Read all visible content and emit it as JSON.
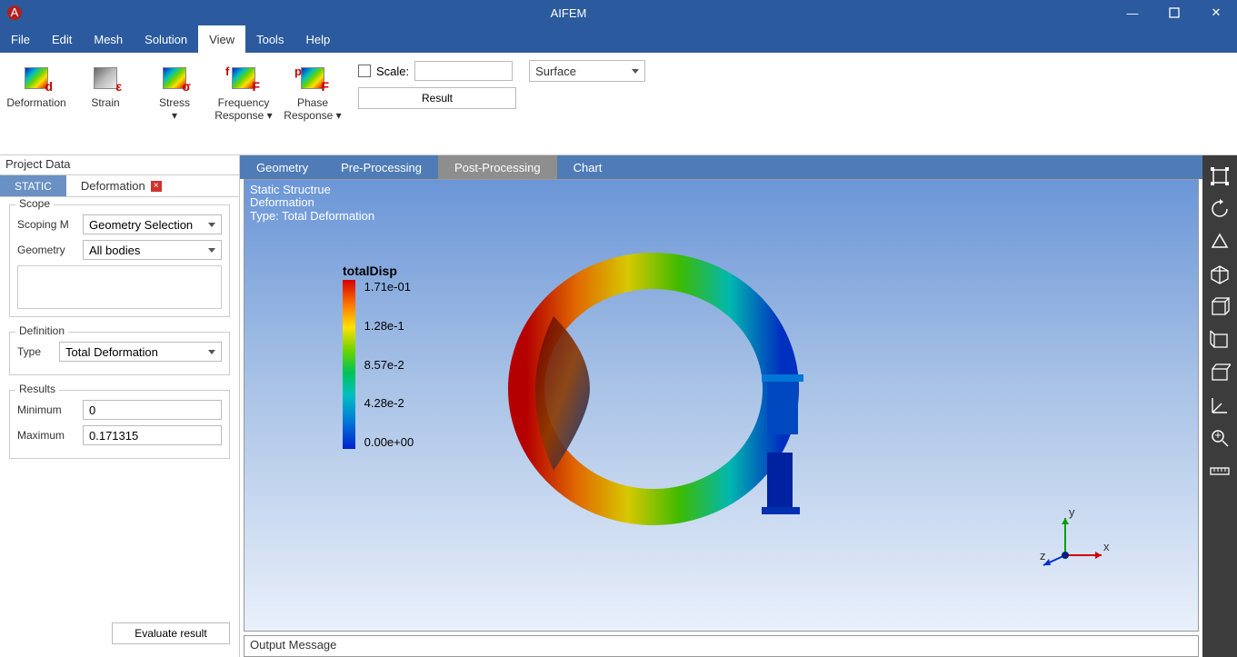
{
  "app_title": "AIFEM",
  "window_buttons": {
    "min": "—",
    "max": "▢",
    "close": "✕"
  },
  "menubar": {
    "items": [
      "File",
      "Edit",
      "Mesh",
      "Solution",
      "View",
      "Tools",
      "Help"
    ],
    "active_index": 4
  },
  "ribbon": {
    "buttons": [
      {
        "label": "Deformation",
        "sub": "d",
        "gray": false
      },
      {
        "label": "Strain",
        "sub": "ε",
        "gray": true
      },
      {
        "label": "Stress\n▾",
        "sub": "σ",
        "gray": false
      },
      {
        "label": "Frequency\nResponse ▾",
        "sub": "F",
        "pre": "f",
        "gray": false
      },
      {
        "label": "Phase\nResponse ▾",
        "sub": "F",
        "pre": "p",
        "gray": false
      }
    ],
    "scale_label": "Scale:",
    "scale_value": "",
    "result_label": "Result",
    "surface_label": "Surface"
  },
  "project_panel": {
    "title": "Project Data",
    "tabs": [
      {
        "label": "STATIC",
        "active": true
      },
      {
        "label": "Deformation",
        "closable": true
      }
    ],
    "scope": {
      "legend": "Scope",
      "scoping_method_label": "Scoping M",
      "scoping_method_value": "Geometry Selection",
      "geometry_label": "Geometry",
      "geometry_value": "All bodies"
    },
    "definition": {
      "legend": "Definition",
      "type_label": "Type",
      "type_value": "Total Deformation"
    },
    "results": {
      "legend": "Results",
      "min_label": "Minimum",
      "min_value": "0",
      "max_label": "Maximum",
      "max_value": "0.171315"
    },
    "evaluate_label": "Evaluate result"
  },
  "view_tabs": {
    "items": [
      "Geometry",
      "Pre-Processing",
      "Post-Processing",
      "Chart"
    ],
    "active_index": 2
  },
  "viewport": {
    "lines": [
      "Static Structrue",
      "Deformation",
      "Type: Total Deformation"
    ],
    "legend_title": "totalDisp",
    "legend_ticks": [
      "1.71e-01",
      "1.28e-1",
      "8.57e-2",
      "4.28e-2",
      "0.00e+00"
    ],
    "triad": {
      "x": "x",
      "y": "y",
      "z": "z"
    },
    "out_msg": "Output Message",
    "bg_top": "#6b96d7",
    "bg_bot": "#e9f0fa",
    "colormap_stops": [
      "#d40000",
      "#ff7a00",
      "#ffe000",
      "#6bd400",
      "#00c458",
      "#00c0c0",
      "#0077d7",
      "#0022cc"
    ]
  },
  "right_rail": {
    "icons": [
      "frame",
      "refresh",
      "persp",
      "iso",
      "box-front",
      "box-side",
      "box-top",
      "axes",
      "zoom-fit",
      "ruler"
    ]
  }
}
